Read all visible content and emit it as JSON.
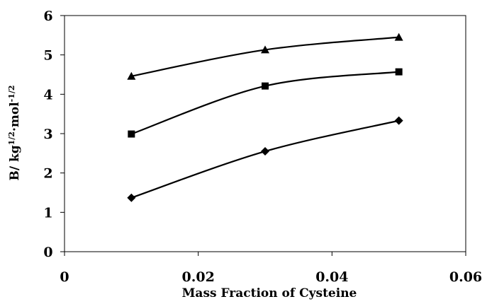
{
  "chart_data": {
    "type": "line",
    "title": "",
    "xlabel": "Mass Fraction of Cysteine",
    "ylabel": {
      "base": "B/ kg",
      "sup1": "1/2",
      "mid": "·mol",
      "sup2": "-1/2"
    },
    "xlim": [
      0,
      0.06
    ],
    "ylim": [
      0,
      6
    ],
    "x_ticks": [
      0,
      0.02,
      0.04,
      0.06
    ],
    "x_tick_labels": [
      "0",
      "0.02",
      "0.04",
      "0.06"
    ],
    "y_ticks": [
      0,
      1,
      2,
      3,
      4,
      5,
      6
    ],
    "y_tick_labels": [
      "0",
      "1",
      "2",
      "3",
      "4",
      "5",
      "6"
    ],
    "grid": false,
    "legend": "none",
    "line_color": "#000000",
    "x": [
      0.01,
      0.03,
      0.05
    ],
    "series": [
      {
        "marker": "triangle",
        "values": [
          4.46,
          5.13,
          5.45
        ]
      },
      {
        "marker": "square",
        "values": [
          2.99,
          4.21,
          4.57
        ]
      },
      {
        "marker": "diamond",
        "values": [
          1.37,
          2.55,
          3.33
        ]
      }
    ]
  }
}
